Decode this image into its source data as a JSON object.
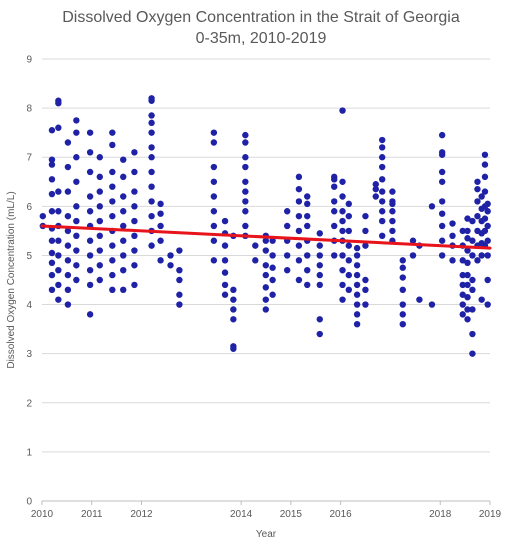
{
  "chart_data": {
    "type": "scatter",
    "title": "Dissolved Oxygen Concentration in the Strait of Georgia",
    "subtitle": "0-35m, 2010-2019",
    "xlabel": "Year",
    "ylabel": "Dissolved Oxygen Concentration (mL/L)",
    "xlim": [
      "2010-01-01",
      "2019-01-01"
    ],
    "ylim": [
      0,
      9
    ],
    "x_ticks": [
      {
        "date": "2010-01-01",
        "label": "2010"
      },
      {
        "date": "2011-01-01",
        "label": "2011"
      },
      {
        "date": "2012-01-01",
        "label": "2012"
      },
      {
        "date": "2014-01-01",
        "label": "2014"
      },
      {
        "date": "2015-01-01",
        "label": "2015"
      },
      {
        "date": "2016-01-01",
        "label": "2016"
      },
      {
        "date": "2018-01-01",
        "label": "2018"
      },
      {
        "date": "2019-01-01",
        "label": "2019"
      }
    ],
    "y_ticks": [
      0,
      1,
      2,
      3,
      4,
      5,
      6,
      7,
      8,
      9
    ],
    "grid": "horizontal",
    "marker_color": "#1f22a6",
    "trend_color": "#e8141b",
    "trendline": {
      "x": [
        "2010-01-01",
        "2019-01-01"
      ],
      "y": [
        5.6,
        5.15
      ]
    },
    "points": [
      {
        "x": "2010-01-07",
        "y": [
          5.8,
          5.6
        ]
      },
      {
        "x": "2010-03-15",
        "y": [
          4.3,
          4.6,
          4.85,
          5.05,
          5.3,
          5.55,
          5.9,
          6.25,
          6.55,
          6.85,
          6.95,
          7.55
        ]
      },
      {
        "x": "2010-05-01",
        "y": [
          4.1,
          4.4,
          4.7,
          5.0,
          5.3,
          5.6,
          5.9,
          6.3,
          7.6,
          8.1,
          8.15
        ]
      },
      {
        "x": "2010-07-10",
        "y": [
          4.0,
          4.3,
          4.6,
          4.9,
          5.2,
          5.5,
          5.8,
          6.3,
          6.8,
          7.3
        ]
      },
      {
        "x": "2010-09-10",
        "y": [
          4.5,
          4.8,
          5.1,
          5.4,
          5.7,
          6.0,
          6.5,
          7.0,
          7.5,
          7.75
        ]
      },
      {
        "x": "2010-12-20",
        "y": [
          3.8,
          4.4,
          4.7,
          5.0,
          5.3,
          5.6,
          5.9,
          6.2,
          6.7,
          7.1,
          7.5
        ]
      },
      {
        "x": "2011-03-01",
        "y": [
          4.5,
          4.8,
          5.1,
          5.4,
          5.7,
          6.0,
          6.3,
          6.6,
          7.0
        ]
      },
      {
        "x": "2011-06-01",
        "y": [
          4.3,
          4.6,
          4.9,
          5.2,
          5.5,
          5.8,
          6.1,
          6.4,
          6.7,
          7.25,
          7.5
        ]
      },
      {
        "x": "2011-08-20",
        "y": [
          4.3,
          4.7,
          5.0,
          5.3,
          5.6,
          5.9,
          6.2,
          6.6,
          6.95
        ]
      },
      {
        "x": "2011-11-10",
        "y": [
          4.4,
          4.8,
          5.1,
          5.4,
          5.7,
          6.0,
          6.3,
          6.7,
          7.1
        ]
      },
      {
        "x": "2012-03-15",
        "y": [
          5.2,
          5.5,
          5.8,
          6.1,
          6.4,
          6.7,
          7.0,
          7.2,
          7.5,
          7.7,
          7.85,
          8.15,
          8.2
        ]
      },
      {
        "x": "2012-05-20",
        "y": [
          4.9,
          5.3,
          5.6,
          5.85,
          6.05
        ]
      },
      {
        "x": "2012-08-01",
        "y": [
          4.8,
          5.0
        ]
      },
      {
        "x": "2012-10-05",
        "y": [
          4.0,
          4.2,
          4.5,
          4.7,
          5.1
        ]
      },
      {
        "x": "2013-06-15",
        "y": [
          4.9,
          5.3,
          5.6,
          5.9,
          6.2,
          6.5,
          6.8,
          7.3,
          7.5
        ]
      },
      {
        "x": "2013-09-05",
        "y": [
          4.2,
          4.4,
          4.65,
          4.9,
          5.2,
          5.45,
          5.7
        ]
      },
      {
        "x": "2013-11-05",
        "y": [
          3.1,
          3.15,
          3.7,
          3.9,
          4.1,
          4.3,
          5.4
        ]
      },
      {
        "x": "2014-02-01",
        "y": [
          5.4,
          5.6,
          5.9,
          6.1,
          6.3,
          6.5,
          6.8,
          7.0,
          7.3,
          7.45
        ]
      },
      {
        "x": "2014-04-15",
        "y": [
          4.9,
          5.2
        ]
      },
      {
        "x": "2014-07-01",
        "y": [
          3.9,
          4.1,
          4.35,
          4.6,
          4.8,
          5.1,
          5.3,
          5.4
        ]
      },
      {
        "x": "2014-08-20",
        "y": [
          4.2,
          4.5,
          4.75,
          5.0,
          5.3
        ]
      },
      {
        "x": "2014-12-05",
        "y": [
          4.7,
          5.0,
          5.3,
          5.6,
          5.9
        ]
      },
      {
        "x": "2015-03-01",
        "y": [
          4.5,
          4.9,
          5.2,
          5.5,
          5.8,
          6.1,
          6.35,
          6.6
        ]
      },
      {
        "x": "2015-05-01",
        "y": [
          4.4,
          4.7,
          5.0,
          5.3,
          5.6,
          5.8,
          6.05,
          6.2
        ]
      },
      {
        "x": "2015-08-01",
        "y": [
          3.4,
          3.7,
          4.4,
          4.6,
          4.8,
          5.0,
          5.2,
          5.45
        ]
      },
      {
        "x": "2015-11-15",
        "y": [
          5.0,
          5.3,
          5.6,
          5.9,
          6.1,
          6.4,
          6.55,
          6.6
        ]
      },
      {
        "x": "2016-01-15",
        "y": [
          4.1,
          4.4,
          4.7,
          5.0,
          5.3,
          5.5,
          5.7,
          5.9,
          6.2,
          6.5,
          7.95
        ]
      },
      {
        "x": "2016-03-01",
        "y": [
          4.3,
          4.6,
          4.9,
          5.2,
          5.5,
          5.8,
          6.05
        ]
      },
      {
        "x": "2016-05-01",
        "y": [
          3.6,
          3.8,
          4.0,
          4.2,
          4.4,
          4.6,
          4.8,
          5.0,
          5.15
        ]
      },
      {
        "x": "2016-07-01",
        "y": [
          4.0,
          4.3,
          4.5,
          5.2,
          5.5,
          5.8
        ]
      },
      {
        "x": "2016-09-15",
        "y": [
          6.2,
          6.35,
          6.45
        ]
      },
      {
        "x": "2016-11-01",
        "y": [
          5.4,
          5.7,
          5.9,
          6.1,
          6.3,
          6.55,
          6.8,
          7.0,
          7.2,
          7.35
        ]
      },
      {
        "x": "2017-01-15",
        "y": [
          5.3,
          5.5,
          5.7,
          5.9,
          6.1,
          6.3,
          6.05
        ]
      },
      {
        "x": "2017-04-01",
        "y": [
          3.6,
          3.8,
          4.0,
          4.3,
          4.55,
          4.75,
          4.9
        ]
      },
      {
        "x": "2017-06-15",
        "y": [
          5.0,
          5.3
        ]
      },
      {
        "x": "2017-08-01",
        "y": [
          4.1,
          5.2
        ]
      },
      {
        "x": "2017-11-01",
        "y": [
          4.0,
          6.0
        ]
      },
      {
        "x": "2018-01-15",
        "y": [
          5.0,
          5.3,
          5.6,
          5.85,
          6.1,
          6.5,
          6.7,
          7.05,
          7.1,
          7.45
        ]
      },
      {
        "x": "2018-04-01",
        "y": [
          4.9,
          5.2,
          5.4,
          5.65
        ]
      },
      {
        "x": "2018-06-15",
        "y": [
          3.8,
          4.0,
          4.2,
          4.4,
          4.6,
          4.9,
          5.2,
          5.5
        ]
      },
      {
        "x": "2018-07-20",
        "y": [
          3.7,
          3.9,
          4.15,
          4.4,
          4.6,
          4.85,
          5.1,
          5.35,
          5.5,
          5.75
        ]
      },
      {
        "x": "2018-08-25",
        "y": [
          3.0,
          3.4,
          3.9,
          4.3,
          4.5,
          5.0,
          5.3,
          5.7
        ]
      },
      {
        "x": "2018-10-01",
        "y": [
          4.9,
          5.2,
          5.5,
          5.8,
          6.1,
          6.35,
          6.5
        ]
      },
      {
        "x": "2018-11-01",
        "y": [
          4.1,
          5.0,
          5.25,
          5.45,
          5.7,
          5.95,
          6.2
        ]
      },
      {
        "x": "2018-11-25",
        "y": [
          5.2,
          5.5,
          5.75,
          6.0,
          6.3,
          6.6,
          6.85,
          7.05
        ]
      },
      {
        "x": "2018-12-15",
        "y": [
          4.0,
          4.5,
          5.0,
          5.3,
          5.6,
          5.9,
          6.05
        ]
      }
    ]
  }
}
